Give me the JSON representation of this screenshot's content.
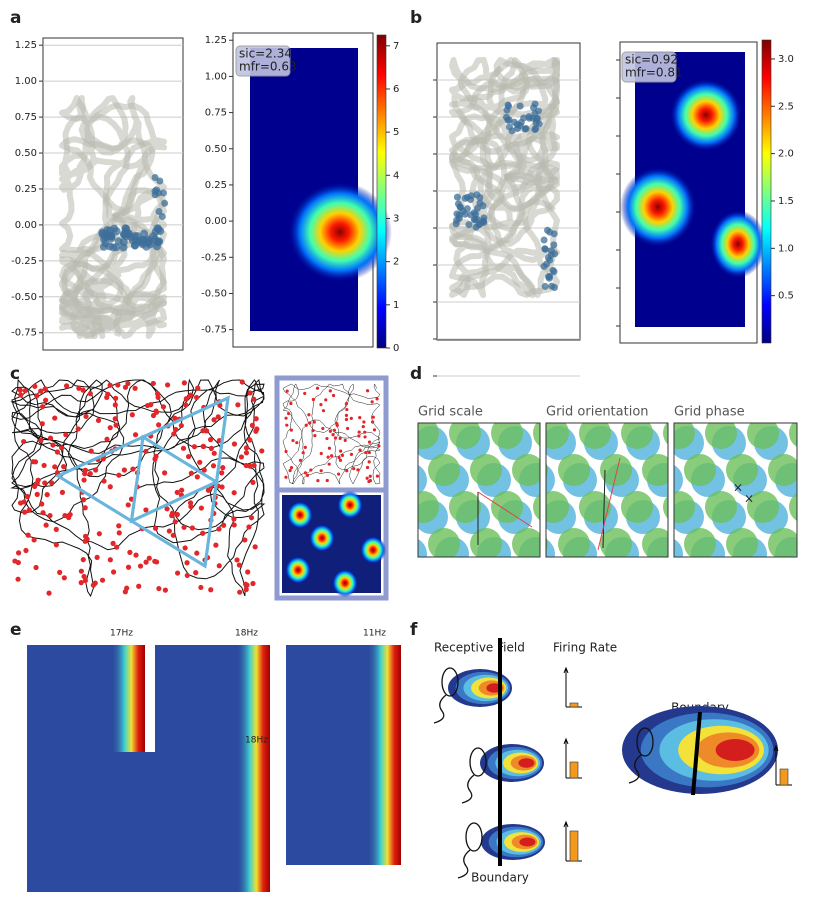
{
  "panel_a": {
    "label": "a",
    "trajectory": {
      "ylim": [
        -0.87,
        1.3
      ],
      "yticks": [
        1.25,
        {
          "value": 1,
          "label": "1.00"
        },
        0.75,
        {
          "value": 0.5,
          "label": "0.50"
        },
        0.25,
        {
          "value": 0,
          "label": "0.00"
        },
        -0.25,
        {
          "value": -0.5,
          "label": "-0.50"
        },
        -0.75
      ]
    },
    "rate_map": {
      "ylim": [
        -0.87,
        1.3
      ],
      "yticks": [
        1.25,
        {
          "value": 1,
          "label": "1.00"
        },
        0.75,
        {
          "value": 0.5,
          "label": "0.50"
        },
        0.25,
        {
          "value": 0,
          "label": "0.00"
        },
        -0.25,
        {
          "value": -0.5,
          "label": "-0.50"
        },
        -0.75
      ],
      "annotation": [
        "sic=2.34",
        "mfr=0.63"
      ],
      "colorbar": {
        "ylim": [
          0,
          7.25
        ],
        "yticks": [
          0,
          1,
          2,
          3,
          4,
          5,
          6,
          7
        ]
      }
    }
  },
  "panel_b": {
    "label": "b",
    "rate_map": {
      "annotation": [
        "sic=0.92",
        "mfr=0.81"
      ],
      "colorbar": {
        "ylim": [
          0,
          3.2
        ],
        "yticks": [
          0.5,
          {
            "value": 1,
            "label": "1.0"
          },
          1.5,
          {
            "value": 2,
            "label": "2.0"
          },
          2.5,
          {
            "value": 3,
            "label": "3.0"
          }
        ]
      }
    }
  },
  "panel_c": {
    "label": "c"
  },
  "panel_d": {
    "label": "d",
    "titles": [
      "Grid scale",
      "Grid orientation",
      "Grid phase"
    ]
  },
  "panel_e": {
    "label": "e",
    "rates": [
      "17Hz",
      "18Hz",
      "11Hz",
      "18Hz"
    ]
  },
  "panel_f": {
    "label": "f",
    "headers": [
      "Receptive Field",
      "Firing Rate"
    ],
    "boundary_labels": [
      "Boundary",
      "Boundary"
    ]
  }
}
